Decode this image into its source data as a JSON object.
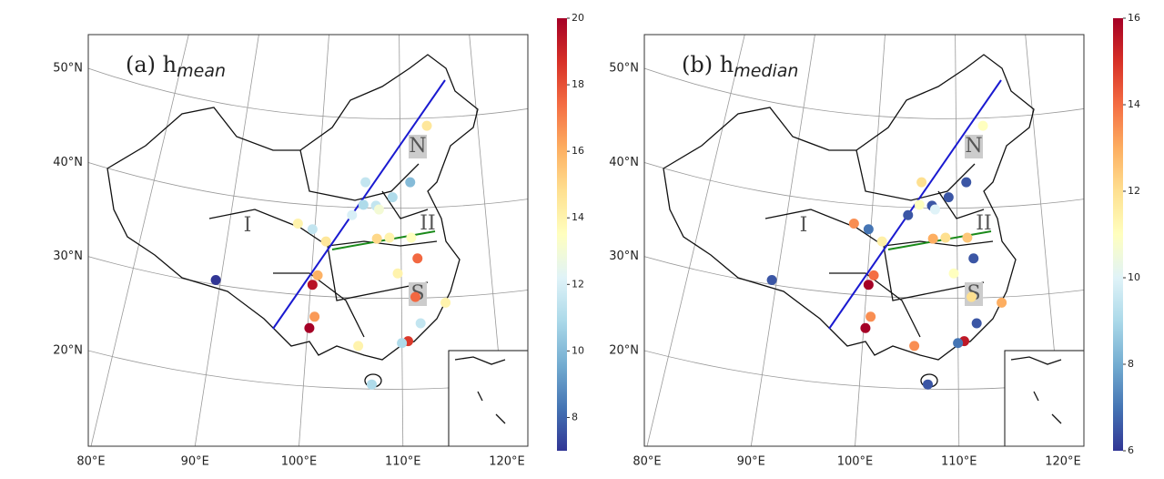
{
  "panels": [
    {
      "title": "(a) h",
      "subscript": "mean",
      "region_labels": [
        "I",
        "II",
        "N",
        "S"
      ],
      "lat_labels": [
        {
          "value": 20,
          "label": "20°N"
        },
        {
          "value": 30,
          "label": "30°N"
        },
        {
          "value": 40,
          "label": "40°N"
        },
        {
          "value": 50,
          "label": "50°N"
        }
      ],
      "lon_labels": [
        {
          "value": 80,
          "label": "80°E"
        },
        {
          "value": 90,
          "label": "90°E"
        },
        {
          "value": 100,
          "label": "100°E"
        },
        {
          "value": 110,
          "label": "110°E"
        },
        {
          "value": 120,
          "label": "120°E"
        }
      ],
      "colorbar": {
        "lim": [
          7,
          20
        ],
        "ticks": [
          8,
          10,
          12,
          14,
          16,
          18,
          20
        ]
      },
      "points": [
        {
          "lon": 92.0,
          "lat": 27.5,
          "value": 7
        },
        {
          "lon": 101.0,
          "lat": 22.4,
          "value": 20
        },
        {
          "lon": 101.3,
          "lat": 27.0,
          "value": 19.5
        },
        {
          "lon": 101.8,
          "lat": 28.0,
          "value": 16
        },
        {
          "lon": 101.5,
          "lat": 23.6,
          "value": 16.5
        },
        {
          "lon": 99.9,
          "lat": 33.5,
          "value": 14
        },
        {
          "lon": 101.3,
          "lat": 32.9,
          "value": 11.5
        },
        {
          "lon": 102.6,
          "lat": 31.6,
          "value": 14.5
        },
        {
          "lon": 105.1,
          "lat": 34.4,
          "value": 12
        },
        {
          "lon": 106.2,
          "lat": 35.5,
          "value": 11
        },
        {
          "lon": 107.4,
          "lat": 35.4,
          "value": 11.5
        },
        {
          "lon": 106.4,
          "lat": 37.9,
          "value": 11.5
        },
        {
          "lon": 107.7,
          "lat": 35.0,
          "value": 13
        },
        {
          "lon": 109.0,
          "lat": 36.3,
          "value": 11
        },
        {
          "lon": 110.7,
          "lat": 37.9,
          "value": 10
        },
        {
          "lon": 111.7,
          "lat": 22.9,
          "value": 11.5
        },
        {
          "lon": 112.3,
          "lat": 43.9,
          "value": 14.5
        },
        {
          "lon": 107.5,
          "lat": 31.9,
          "value": 15
        },
        {
          "lon": 108.7,
          "lat": 32.0,
          "value": 14
        },
        {
          "lon": 110.8,
          "lat": 32.0,
          "value": 13.5
        },
        {
          "lon": 111.4,
          "lat": 29.8,
          "value": 17.5
        },
        {
          "lon": 109.5,
          "lat": 28.2,
          "value": 14
        },
        {
          "lon": 111.2,
          "lat": 25.7,
          "value": 17.5
        },
        {
          "lon": 105.7,
          "lat": 20.5,
          "value": 14
        },
        {
          "lon": 110.5,
          "lat": 21.0,
          "value": 18.5
        },
        {
          "lon": 109.9,
          "lat": 20.8,
          "value": 11
        },
        {
          "lon": 107.0,
          "lat": 16.4,
          "value": 11
        },
        {
          "lon": 114.1,
          "lat": 25.1,
          "value": 14
        }
      ]
    },
    {
      "title": "(b) h",
      "subscript": "median",
      "region_labels": [
        "I",
        "II",
        "N",
        "S"
      ],
      "lat_labels": [
        {
          "value": 20,
          "label": "20°N"
        },
        {
          "value": 30,
          "label": "30°N"
        },
        {
          "value": 40,
          "label": "40°N"
        },
        {
          "value": 50,
          "label": "50°N"
        }
      ],
      "lon_labels": [
        {
          "value": 80,
          "label": "80°E"
        },
        {
          "value": 90,
          "label": "90°E"
        },
        {
          "value": 100,
          "label": "100°E"
        },
        {
          "value": 110,
          "label": "110°E"
        },
        {
          "value": 120,
          "label": "120°E"
        }
      ],
      "colorbar": {
        "lim": [
          6,
          16
        ],
        "ticks": [
          6,
          8,
          10,
          12,
          14,
          16
        ]
      },
      "points": [
        {
          "lon": 92.0,
          "lat": 27.5,
          "value": 6.5
        },
        {
          "lon": 101.0,
          "lat": 22.4,
          "value": 16
        },
        {
          "lon": 101.3,
          "lat": 27.0,
          "value": 16
        },
        {
          "lon": 101.8,
          "lat": 28.0,
          "value": 14
        },
        {
          "lon": 101.5,
          "lat": 23.6,
          "value": 13.5
        },
        {
          "lon": 99.9,
          "lat": 33.5,
          "value": 13.5
        },
        {
          "lon": 101.3,
          "lat": 32.9,
          "value": 7
        },
        {
          "lon": 102.6,
          "lat": 31.6,
          "value": 11.5
        },
        {
          "lon": 105.1,
          "lat": 34.4,
          "value": 6.5
        },
        {
          "lon": 106.2,
          "lat": 35.5,
          "value": 11
        },
        {
          "lon": 107.4,
          "lat": 35.4,
          "value": 6.5
        },
        {
          "lon": 106.4,
          "lat": 37.9,
          "value": 12
        },
        {
          "lon": 107.7,
          "lat": 35.0,
          "value": 10
        },
        {
          "lon": 109.0,
          "lat": 36.3,
          "value": 6.5
        },
        {
          "lon": 110.7,
          "lat": 37.9,
          "value": 6.5
        },
        {
          "lon": 111.7,
          "lat": 22.9,
          "value": 6.5
        },
        {
          "lon": 112.3,
          "lat": 43.9,
          "value": 11
        },
        {
          "lon": 107.5,
          "lat": 31.9,
          "value": 13
        },
        {
          "lon": 108.7,
          "lat": 32.0,
          "value": 12
        },
        {
          "lon": 110.8,
          "lat": 32.0,
          "value": 12.5
        },
        {
          "lon": 111.4,
          "lat": 29.8,
          "value": 6.5
        },
        {
          "lon": 109.5,
          "lat": 28.2,
          "value": 11
        },
        {
          "lon": 111.2,
          "lat": 25.7,
          "value": 12
        },
        {
          "lon": 105.7,
          "lat": 20.5,
          "value": 13.5
        },
        {
          "lon": 110.5,
          "lat": 21.0,
          "value": 15.5
        },
        {
          "lon": 109.9,
          "lat": 20.8,
          "value": 7
        },
        {
          "lon": 107.0,
          "lat": 16.4,
          "value": 6.5
        },
        {
          "lon": 114.1,
          "lat": 25.1,
          "value": 13
        }
      ]
    }
  ]
}
